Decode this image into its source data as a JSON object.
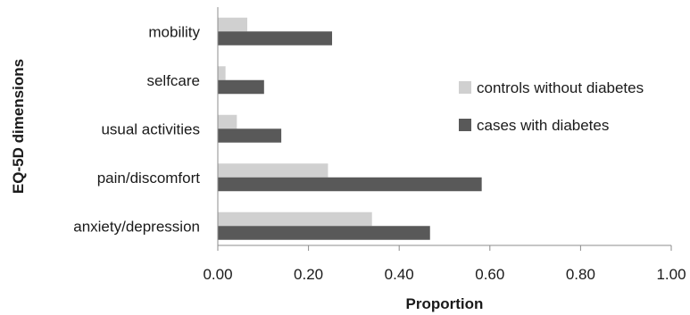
{
  "chart_data": {
    "type": "bar",
    "orientation": "horizontal",
    "categories": [
      "mobility",
      "selfcare",
      "usual activities",
      "pain/discomfort",
      "anxiety/depression"
    ],
    "series": [
      {
        "name": "controls without diabetes",
        "color": "#d0d0d0",
        "values": [
          0.065,
          0.017,
          0.042,
          0.243,
          0.34
        ]
      },
      {
        "name": "cases with diabetes",
        "color": "#595959",
        "values": [
          0.252,
          0.102,
          0.14,
          0.582,
          0.468
        ]
      }
    ],
    "xlabel": "Proportion",
    "ylabel": "EQ-5D dimensions",
    "xlim": [
      0,
      1
    ],
    "xticks": [
      0,
      0.2,
      0.4,
      0.6,
      0.8,
      1.0
    ],
    "xtick_labels": [
      "0.00",
      "0.20",
      "0.40",
      "0.60",
      "0.80",
      "1.00"
    ],
    "grid": false,
    "legend_position": "right"
  }
}
